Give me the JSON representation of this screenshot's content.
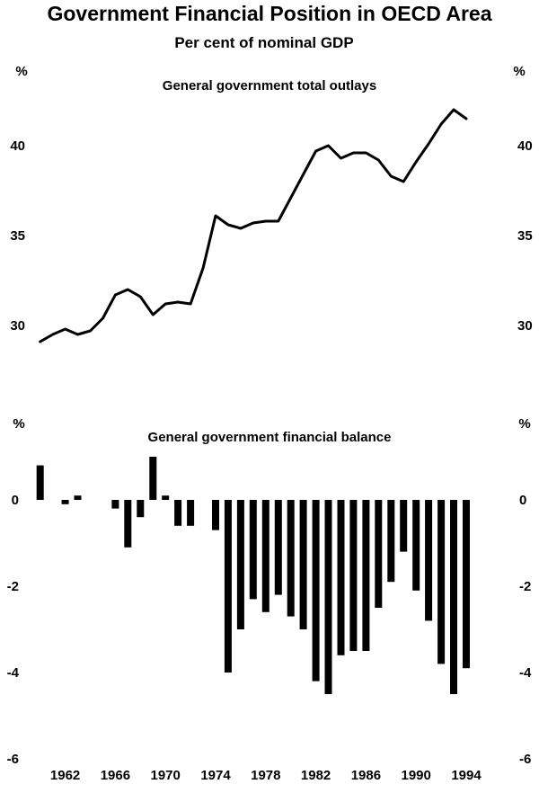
{
  "header": {
    "title": "Government Financial Position in OECD Area",
    "subtitle": "Per cent of nominal GDP"
  },
  "chart_data": [
    {
      "type": "line",
      "title": "General government total outlays",
      "ylabel": "%",
      "ylim": [
        27.5,
        42.5
      ],
      "yticks": [
        30,
        35,
        40
      ],
      "grid": false,
      "legend": "none",
      "x": [
        1960,
        1961,
        1962,
        1963,
        1964,
        1965,
        1966,
        1967,
        1968,
        1969,
        1970,
        1971,
        1972,
        1973,
        1974,
        1975,
        1976,
        1977,
        1978,
        1979,
        1980,
        1981,
        1982,
        1983,
        1984,
        1985,
        1986,
        1987,
        1988,
        1989,
        1990,
        1991,
        1992,
        1993,
        1994
      ],
      "series": [
        {
          "name": "",
          "values": [
            29.1,
            29.5,
            29.8,
            29.5,
            29.7,
            30.4,
            31.7,
            32.0,
            31.6,
            30.6,
            31.2,
            31.3,
            31.2,
            33.2,
            36.1,
            35.6,
            35.4,
            35.7,
            35.8,
            35.8,
            37.1,
            38.4,
            39.7,
            40.0,
            39.3,
            39.6,
            39.6,
            39.2,
            38.3,
            38.0,
            39.1,
            40.1,
            41.2,
            42.0,
            41.5
          ]
        }
      ]
    },
    {
      "type": "bar",
      "title": "General government financial balance",
      "ylabel": "%",
      "ylim": [
        -6,
        1.2
      ],
      "yticks": [
        0,
        -2,
        -4,
        -6
      ],
      "grid": false,
      "legend": "none",
      "categories": [
        1960,
        1961,
        1962,
        1963,
        1964,
        1965,
        1966,
        1967,
        1968,
        1969,
        1970,
        1971,
        1972,
        1973,
        1974,
        1975,
        1976,
        1977,
        1978,
        1979,
        1980,
        1981,
        1982,
        1983,
        1984,
        1985,
        1986,
        1987,
        1988,
        1989,
        1990,
        1991,
        1992,
        1993,
        1994
      ],
      "values": [
        0.8,
        0,
        -0.1,
        0.1,
        0,
        0,
        -0.2,
        -1.1,
        -0.4,
        1.0,
        0.1,
        -0.6,
        -0.6,
        0,
        -0.7,
        -4.0,
        -3.0,
        -2.3,
        -2.6,
        -2.2,
        -2.7,
        -3.0,
        -4.2,
        -4.5,
        -3.6,
        -3.5,
        -3.5,
        -2.5,
        -1.9,
        -1.2,
        -2.1,
        -2.8,
        -3.8,
        -4.5,
        -3.9
      ],
      "xticks": [
        "1962",
        "1966",
        "1970",
        "1974",
        "1978",
        "1982",
        "1986",
        "1990",
        "1994"
      ]
    }
  ]
}
